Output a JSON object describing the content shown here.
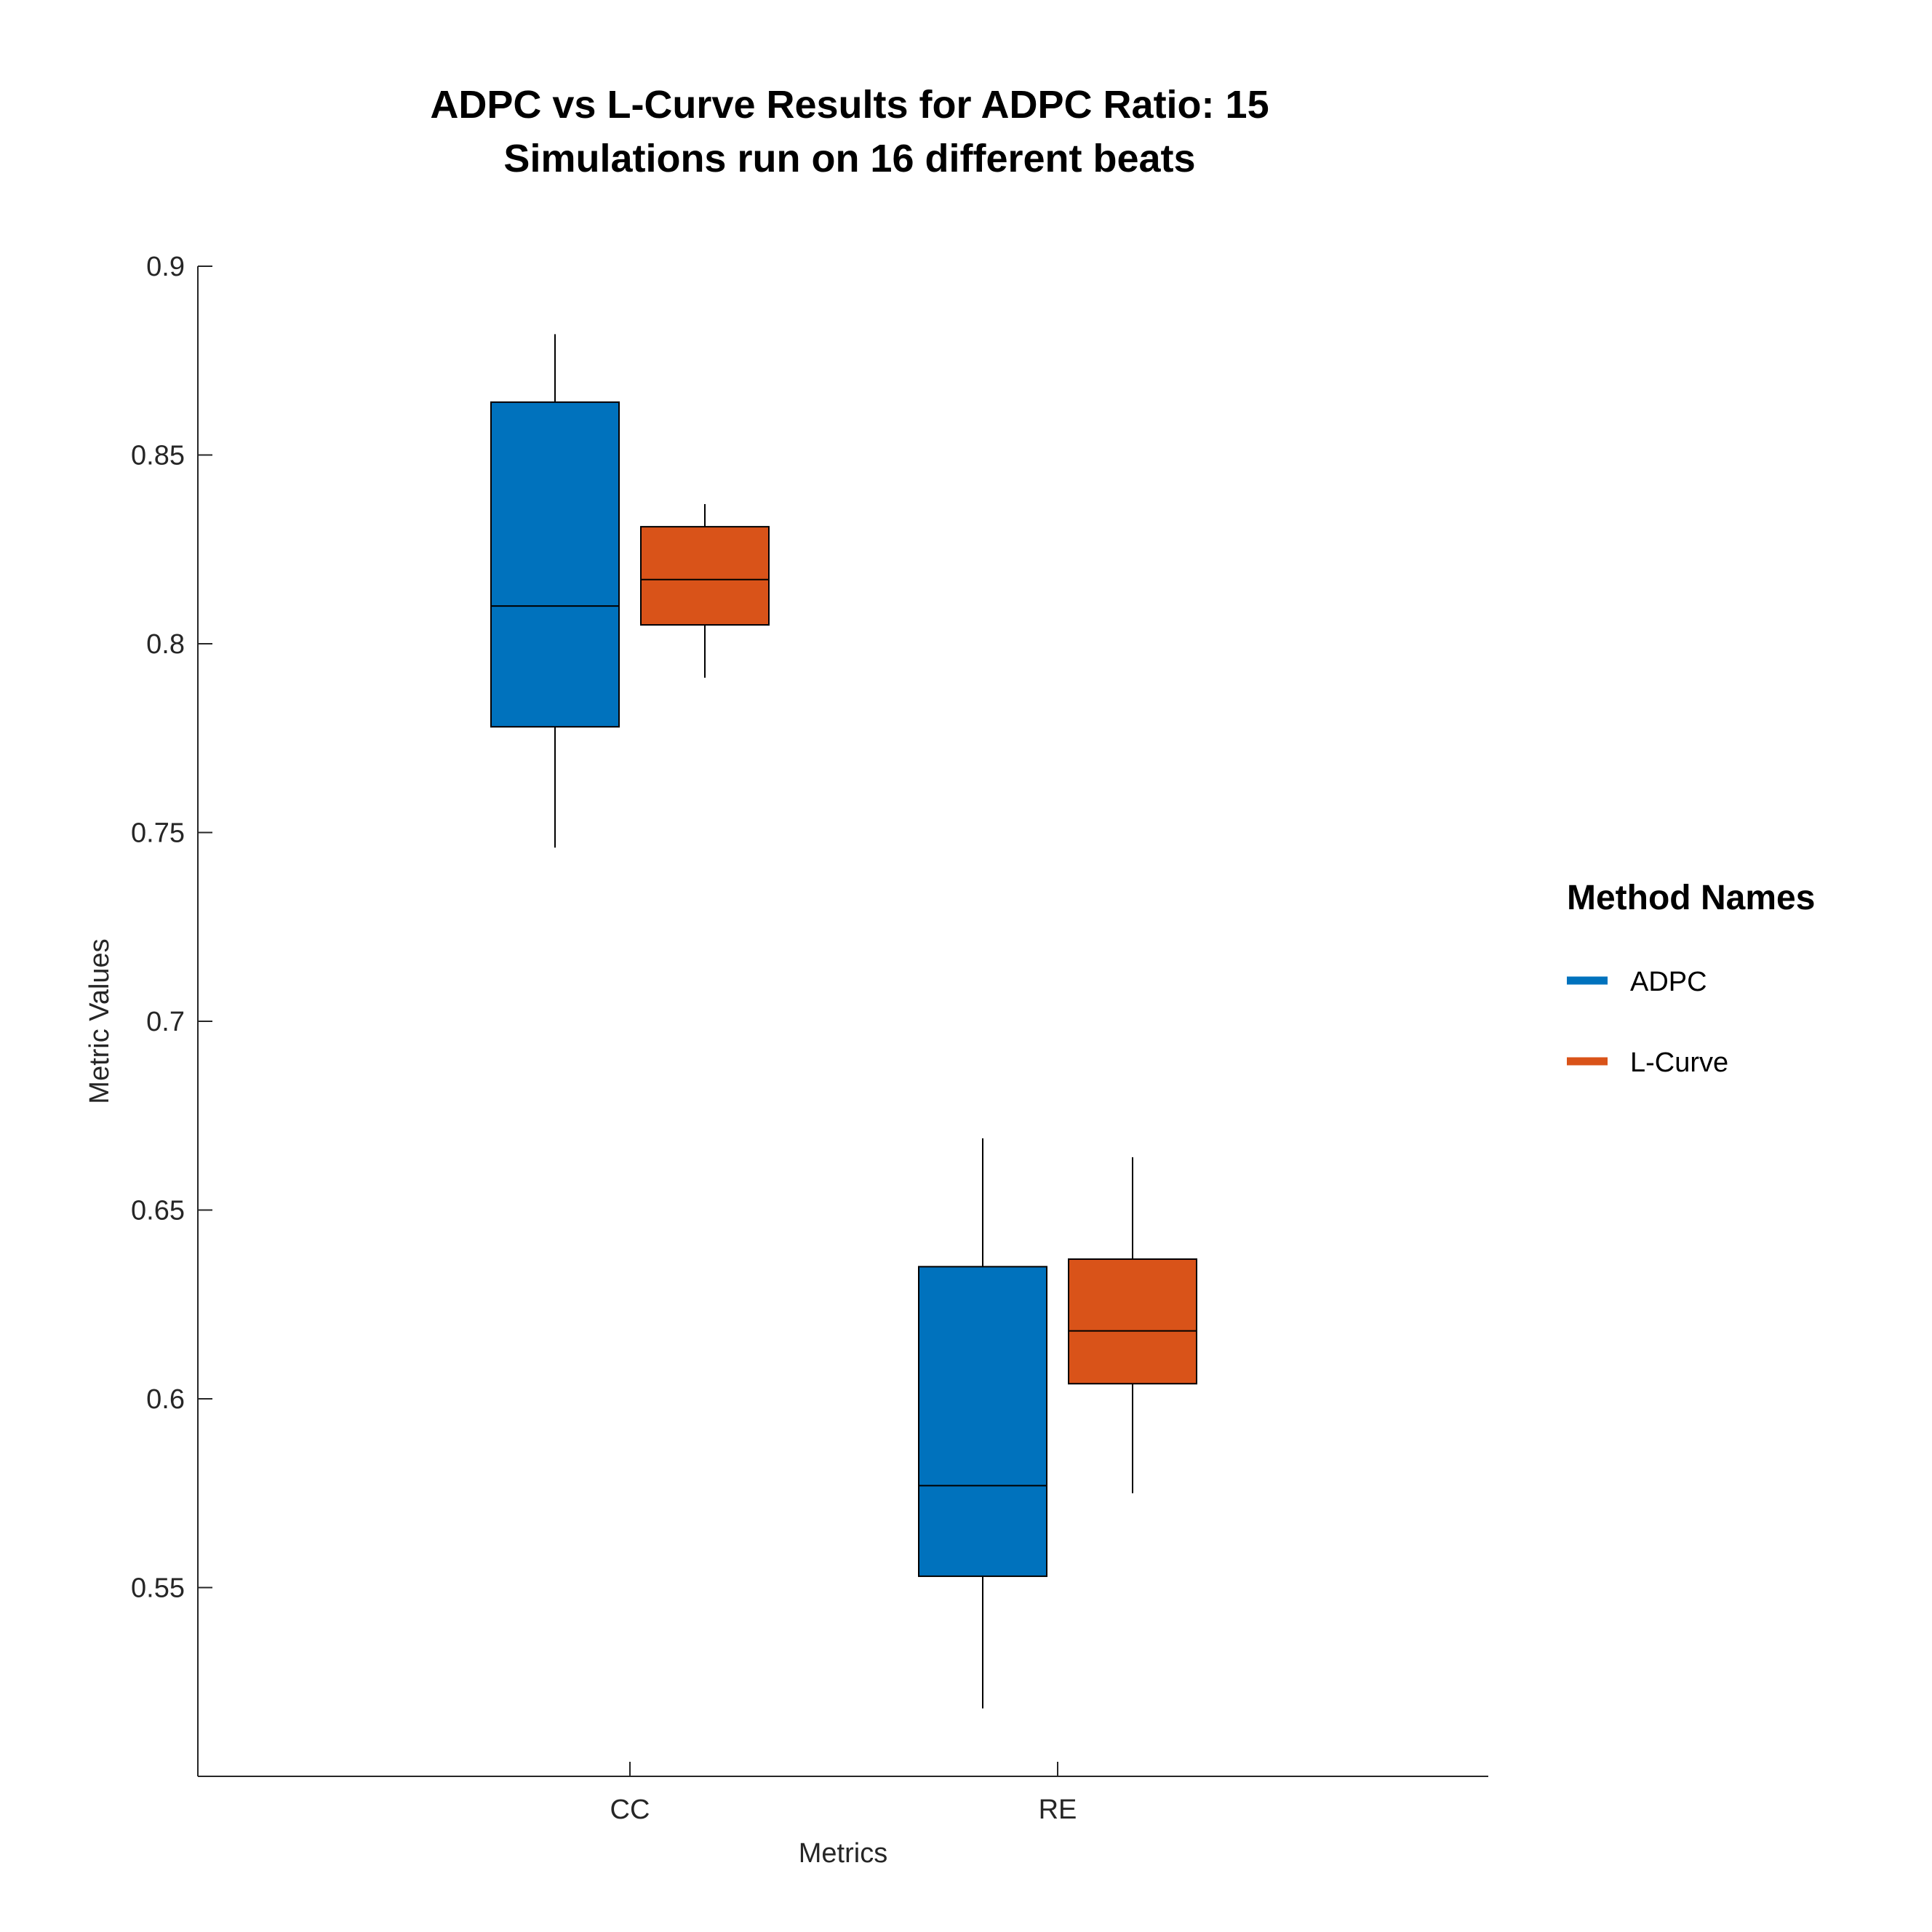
{
  "chart_data": {
    "type": "boxplot",
    "title": "ADPC vs L-Curve Results for ADPC Ratio: 15",
    "subtitle": "Simulations run on 16 different beats",
    "xlabel": "Metrics",
    "ylabel": "Metric Values",
    "categories": [
      "CC",
      "RE"
    ],
    "ylim": [
      0.5,
      0.9
    ],
    "yticks": [
      0.55,
      0.6,
      0.65,
      0.7,
      0.75,
      0.8,
      0.85,
      0.9
    ],
    "ytick_labels": [
      "0.55",
      "0.6",
      "0.65",
      "0.7",
      "0.75",
      "0.8",
      "0.85",
      "0.9"
    ],
    "grid": false,
    "legend": {
      "title": "Method Names",
      "position": "right"
    },
    "series": [
      {
        "name": "ADPC",
        "color": "#0072BD",
        "boxes": [
          {
            "category": "CC",
            "whisker_low": 0.746,
            "q1": 0.778,
            "median": 0.81,
            "q3": 0.864,
            "whisker_high": 0.882
          },
          {
            "category": "RE",
            "whisker_low": 0.518,
            "q1": 0.553,
            "median": 0.577,
            "q3": 0.635,
            "whisker_high": 0.669
          }
        ]
      },
      {
        "name": "L-Curve",
        "color": "#D95319",
        "boxes": [
          {
            "category": "CC",
            "whisker_low": 0.791,
            "q1": 0.805,
            "median": 0.817,
            "q3": 0.831,
            "whisker_high": 0.837
          },
          {
            "category": "RE",
            "whisker_low": 0.575,
            "q1": 0.604,
            "median": 0.618,
            "q3": 0.637,
            "whisker_high": 0.664
          }
        ]
      }
    ]
  }
}
